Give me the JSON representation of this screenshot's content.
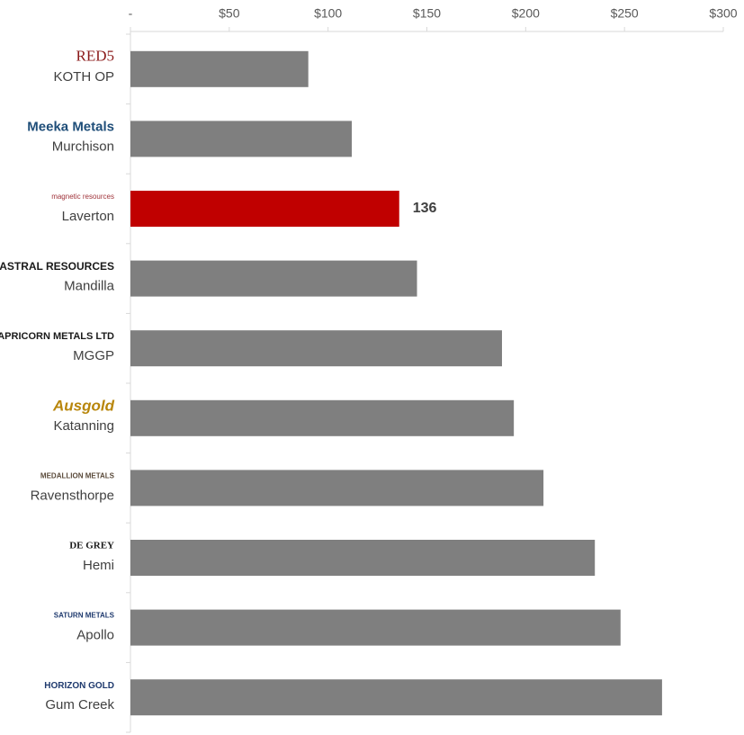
{
  "chart_data": {
    "type": "hbar",
    "categories": [
      "KOTH OP",
      "Murchison",
      "Laverton",
      "Mandilla",
      "MGGP",
      "Katanning",
      "Ravensthorpe",
      "Hemi",
      "Apollo",
      "Gum Creek"
    ],
    "company_logos": [
      "RED5",
      "Meeka Metals",
      "magnetic resources",
      "ASTRAL RESOURCES",
      "CAPRICORN METALS LTD",
      "Ausgold",
      "MEDALLION METALS",
      "DE GREY",
      "SATURN METALS",
      "HORIZON GOLD"
    ],
    "values": [
      90,
      112,
      136,
      145,
      188,
      194,
      209,
      235,
      248,
      269
    ],
    "value_labels": [
      null,
      null,
      "136",
      null,
      null,
      null,
      null,
      null,
      null,
      null
    ],
    "colors": [
      "#7f7f7f",
      "#7f7f7f",
      "#c00000",
      "#7f7f7f",
      "#7f7f7f",
      "#7f7f7f",
      "#7f7f7f",
      "#7f7f7f",
      "#7f7f7f",
      "#7f7f7f"
    ],
    "xlim": [
      0,
      300
    ],
    "xticks": [
      {
        "value": 0,
        "label": "-"
      },
      {
        "value": 50,
        "label": "$50"
      },
      {
        "value": 100,
        "label": "$100"
      },
      {
        "value": 150,
        "label": "$150"
      },
      {
        "value": 200,
        "label": "$200"
      },
      {
        "value": 250,
        "label": "$250"
      },
      {
        "value": 300,
        "label": "$300"
      }
    ]
  }
}
